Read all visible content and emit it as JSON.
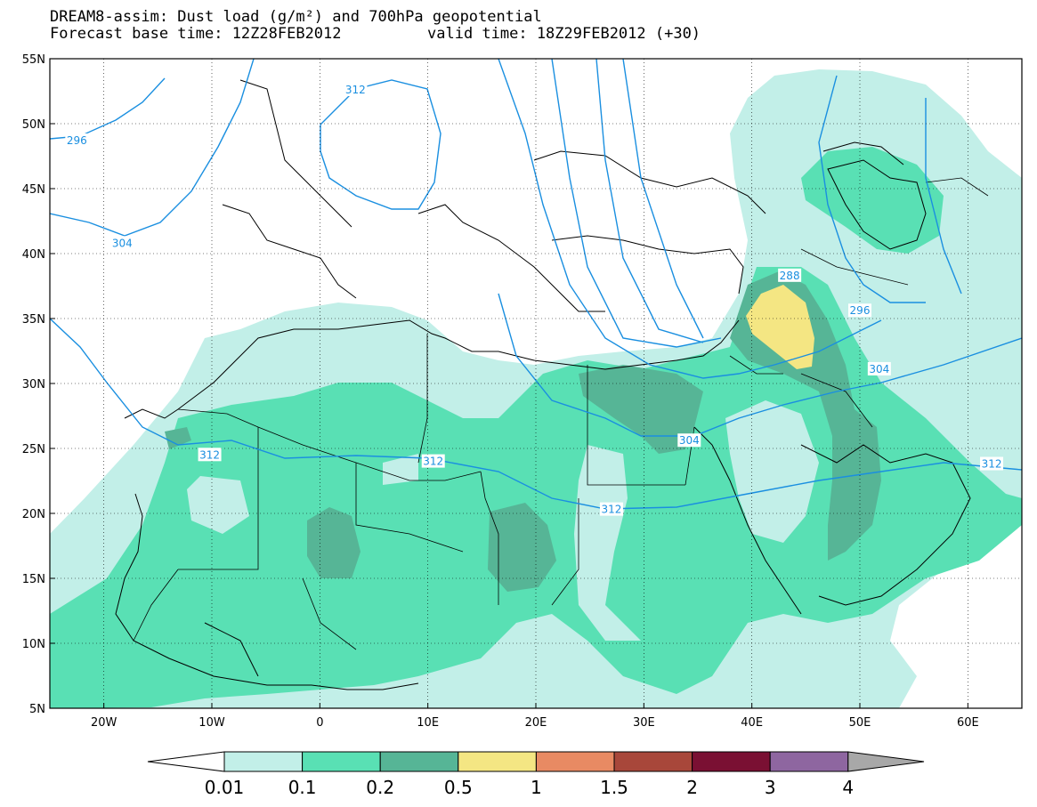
{
  "title": {
    "line1": "DREAM8-assim: Dust load (g/m²) and 700hPa geopotential",
    "line2_left": "Forecast base time: 12Z28FEB2012",
    "line2_right": "valid time: 18Z29FEB2012 (+30)"
  },
  "map": {
    "lon_range": [
      -25,
      65
    ],
    "lat_range": [
      5,
      55
    ],
    "lat_ticks": [
      {
        "value": 55,
        "label": "55N"
      },
      {
        "value": 50,
        "label": "50N"
      },
      {
        "value": 45,
        "label": "45N"
      },
      {
        "value": 40,
        "label": "40N"
      },
      {
        "value": 35,
        "label": "35N"
      },
      {
        "value": 30,
        "label": "30N"
      },
      {
        "value": 25,
        "label": "25N"
      },
      {
        "value": 20,
        "label": "20N"
      },
      {
        "value": 15,
        "label": "15N"
      },
      {
        "value": 10,
        "label": "10N"
      },
      {
        "value": 5,
        "label": "5N"
      }
    ],
    "lon_ticks": [
      {
        "value": -20,
        "label": "20W"
      },
      {
        "value": -10,
        "label": "10W"
      },
      {
        "value": 0,
        "label": "0"
      },
      {
        "value": 10,
        "label": "10E"
      },
      {
        "value": 20,
        "label": "20E"
      },
      {
        "value": 30,
        "label": "30E"
      },
      {
        "value": 40,
        "label": "40E"
      },
      {
        "value": 50,
        "label": "50E"
      },
      {
        "value": 60,
        "label": "60E"
      }
    ],
    "grid": "dotted",
    "contour_color": "#1a8fe0",
    "contour_labels": [
      {
        "text": "296",
        "lon": -22.5,
        "lat": 48.7
      },
      {
        "text": "304",
        "lon": -18.3,
        "lat": 40.8
      },
      {
        "text": "312",
        "lon": 3.3,
        "lat": 52.6
      },
      {
        "text": "312",
        "lon": -10.2,
        "lat": 24.5
      },
      {
        "text": "312",
        "lon": 10.5,
        "lat": 24.0
      },
      {
        "text": "312",
        "lon": 27.0,
        "lat": 20.3
      },
      {
        "text": "304",
        "lon": 34.2,
        "lat": 25.6
      },
      {
        "text": "288",
        "lon": 43.5,
        "lat": 38.3
      },
      {
        "text": "296",
        "lon": 50.0,
        "lat": 35.6
      },
      {
        "text": "304",
        "lon": 51.8,
        "lat": 31.1
      },
      {
        "text": "312",
        "lon": 62.2,
        "lat": 23.8
      }
    ]
  },
  "colorbar": {
    "levels": [
      "0.01",
      "0.1",
      "0.2",
      "0.5",
      "1",
      "1.5",
      "2",
      "3",
      "4"
    ],
    "colors": [
      "#ffffff",
      "#c2efe8",
      "#59e0b4",
      "#56b596",
      "#f4e683",
      "#e88a63",
      "#a8473a",
      "#7a1033",
      "#8e66a0",
      "#a8a8a8"
    ]
  }
}
